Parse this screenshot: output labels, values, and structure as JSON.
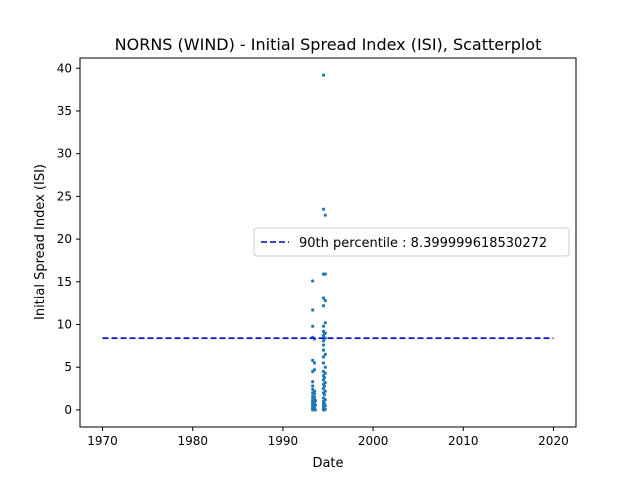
{
  "chart_data": {
    "type": "scatter",
    "title": "NORNS (WIND) - Initial Spread Index (ISI), Scatterplot",
    "xlabel": "Date",
    "ylabel": "Initial Spread Index (ISI)",
    "xlim": [
      1967.5,
      2022.5
    ],
    "ylim": [
      -2.0,
      41.2
    ],
    "xticks": [
      1970,
      1980,
      1990,
      2000,
      2010,
      2020
    ],
    "yticks": [
      0,
      5,
      10,
      15,
      20,
      25,
      30,
      35,
      40
    ],
    "grid": false,
    "legend_position": "center-right",
    "series": [
      {
        "type": "scatter",
        "color": "#1f77b4",
        "points": [
          [
            1993.3,
            0.0
          ],
          [
            1993.3,
            0.2
          ],
          [
            1993.3,
            0.4
          ],
          [
            1993.3,
            0.6
          ],
          [
            1993.3,
            0.8
          ],
          [
            1993.3,
            1.0
          ],
          [
            1993.3,
            1.3
          ],
          [
            1993.3,
            1.6
          ],
          [
            1993.3,
            2.0
          ],
          [
            1993.3,
            2.4
          ],
          [
            1993.3,
            2.8
          ],
          [
            1993.3,
            3.3
          ],
          [
            1993.3,
            4.5
          ],
          [
            1993.3,
            5.8
          ],
          [
            1993.3,
            8.5
          ],
          [
            1993.3,
            9.8
          ],
          [
            1993.3,
            11.7
          ],
          [
            1993.3,
            15.1
          ],
          [
            1993.5,
            0.1
          ],
          [
            1993.5,
            0.3
          ],
          [
            1993.5,
            0.5
          ],
          [
            1993.5,
            0.9
          ],
          [
            1993.5,
            1.2
          ],
          [
            1993.5,
            1.5
          ],
          [
            1993.5,
            1.9
          ],
          [
            1993.5,
            2.2
          ],
          [
            1993.5,
            4.7
          ],
          [
            1993.5,
            5.5
          ],
          [
            1993.5,
            8.3
          ],
          [
            1993.6,
            0.0
          ],
          [
            1993.6,
            0.6
          ],
          [
            1993.6,
            1.1
          ],
          [
            1994.5,
            0.0
          ],
          [
            1994.5,
            0.2
          ],
          [
            1994.5,
            0.4
          ],
          [
            1994.5,
            0.7
          ],
          [
            1994.5,
            1.0
          ],
          [
            1994.5,
            1.4
          ],
          [
            1994.5,
            2.0
          ],
          [
            1994.5,
            2.5
          ],
          [
            1994.5,
            3.0
          ],
          [
            1994.5,
            3.5
          ],
          [
            1994.5,
            4.0
          ],
          [
            1994.5,
            4.5
          ],
          [
            1994.5,
            5.5
          ],
          [
            1994.5,
            6.2
          ],
          [
            1994.5,
            7.0
          ],
          [
            1994.5,
            7.6
          ],
          [
            1994.5,
            8.1
          ],
          [
            1994.5,
            8.7
          ],
          [
            1994.5,
            9.2
          ],
          [
            1994.5,
            9.8
          ],
          [
            1994.5,
            12.2
          ],
          [
            1994.5,
            13.1
          ],
          [
            1994.5,
            15.9
          ],
          [
            1994.5,
            23.5
          ],
          [
            1994.5,
            39.2
          ],
          [
            1994.7,
            0.1
          ],
          [
            1994.7,
            0.5
          ],
          [
            1994.7,
            1.2
          ],
          [
            1994.7,
            2.2
          ],
          [
            1994.7,
            3.2
          ],
          [
            1994.7,
            4.3
          ],
          [
            1994.7,
            5.0
          ],
          [
            1994.7,
            6.5
          ],
          [
            1994.7,
            8.4
          ],
          [
            1994.7,
            9.0
          ],
          [
            1994.7,
            10.2
          ],
          [
            1994.7,
            12.8
          ],
          [
            1994.7,
            15.9
          ],
          [
            1994.7,
            22.8
          ],
          [
            1994.6,
            0.0
          ],
          [
            1994.6,
            0.8
          ],
          [
            1994.6,
            1.8
          ],
          [
            1994.6,
            2.8
          ],
          [
            1994.6,
            3.8
          ],
          [
            1994.6,
            8.9
          ]
        ]
      },
      {
        "type": "line",
        "name": "90th percentile : 8.399999618530272",
        "color": "#0000cc",
        "dash": "dashed",
        "x": [
          1970,
          2020
        ],
        "y": [
          8.399999618530272,
          8.399999618530272
        ]
      }
    ]
  }
}
